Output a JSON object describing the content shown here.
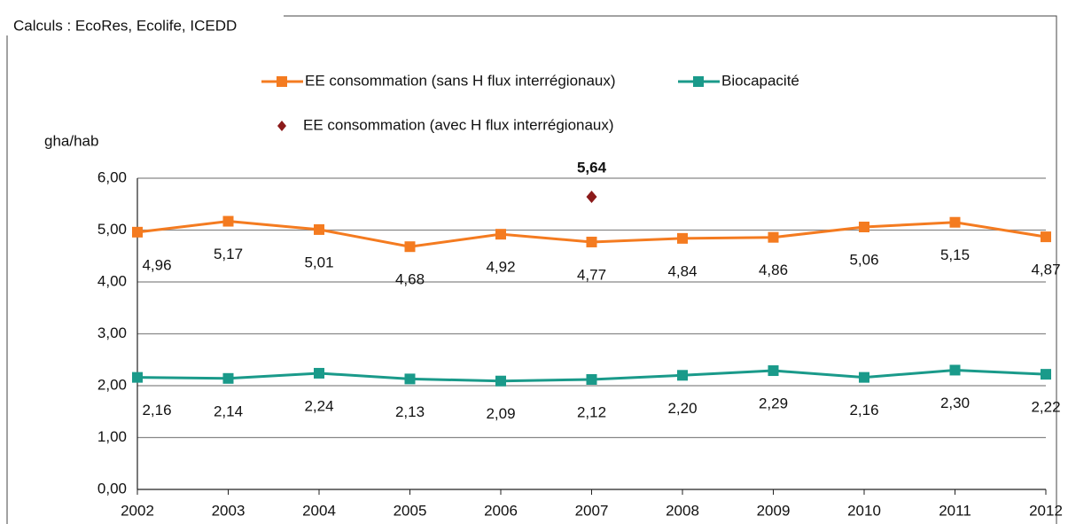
{
  "chart_data": {
    "type": "line",
    "subtitle": "Calculs : EcoRes, Ecolife, ICEDD",
    "y_label": "gha/hab",
    "categories": [
      "2002",
      "2003",
      "2004",
      "2005",
      "2006",
      "2007",
      "2008",
      "2009",
      "2010",
      "2011",
      "2012"
    ],
    "series": [
      {
        "name": "EE  consommation (sans H flux interrégionaux)",
        "color": "#f47b20",
        "marker": "square",
        "values": [
          4.96,
          5.17,
          5.01,
          4.68,
          4.92,
          4.77,
          4.84,
          4.86,
          5.06,
          5.15,
          4.87
        ],
        "value_labels": [
          "4,96",
          "5,17",
          "5,01",
          "4,68",
          "4,92",
          "4,77",
          "4,84",
          "4,86",
          "5,06",
          "5,15",
          "4,87"
        ]
      },
      {
        "name": "Biocapacité",
        "color": "#1a9a8a",
        "marker": "square",
        "values": [
          2.16,
          2.14,
          2.24,
          2.13,
          2.09,
          2.12,
          2.2,
          2.29,
          2.16,
          2.3,
          2.22
        ],
        "value_labels": [
          "2,16",
          "2,14",
          "2,24",
          "2,13",
          "2,09",
          "2,12",
          "2,20",
          "2,29",
          "2,16",
          "2,30",
          "2,22"
        ]
      },
      {
        "name": "EE  consommation (avec H flux interrégionaux)",
        "color": "#8b1a1a",
        "marker": "diamond",
        "values": [
          null,
          null,
          null,
          null,
          null,
          5.64,
          null,
          null,
          null,
          null,
          null
        ],
        "value_labels": [
          null,
          null,
          null,
          null,
          null,
          "5,64",
          null,
          null,
          null,
          null,
          null
        ]
      }
    ],
    "ylim": [
      0,
      6
    ],
    "yticks": [
      {
        "value": 0,
        "label": "0,00"
      },
      {
        "value": 1,
        "label": "1,00"
      },
      {
        "value": 2,
        "label": "2,00"
      },
      {
        "value": 3,
        "label": "3,00"
      },
      {
        "value": 4,
        "label": "4,00"
      },
      {
        "value": 5,
        "label": "5,00"
      },
      {
        "value": 6,
        "label": "6,00"
      }
    ],
    "grid": true
  }
}
